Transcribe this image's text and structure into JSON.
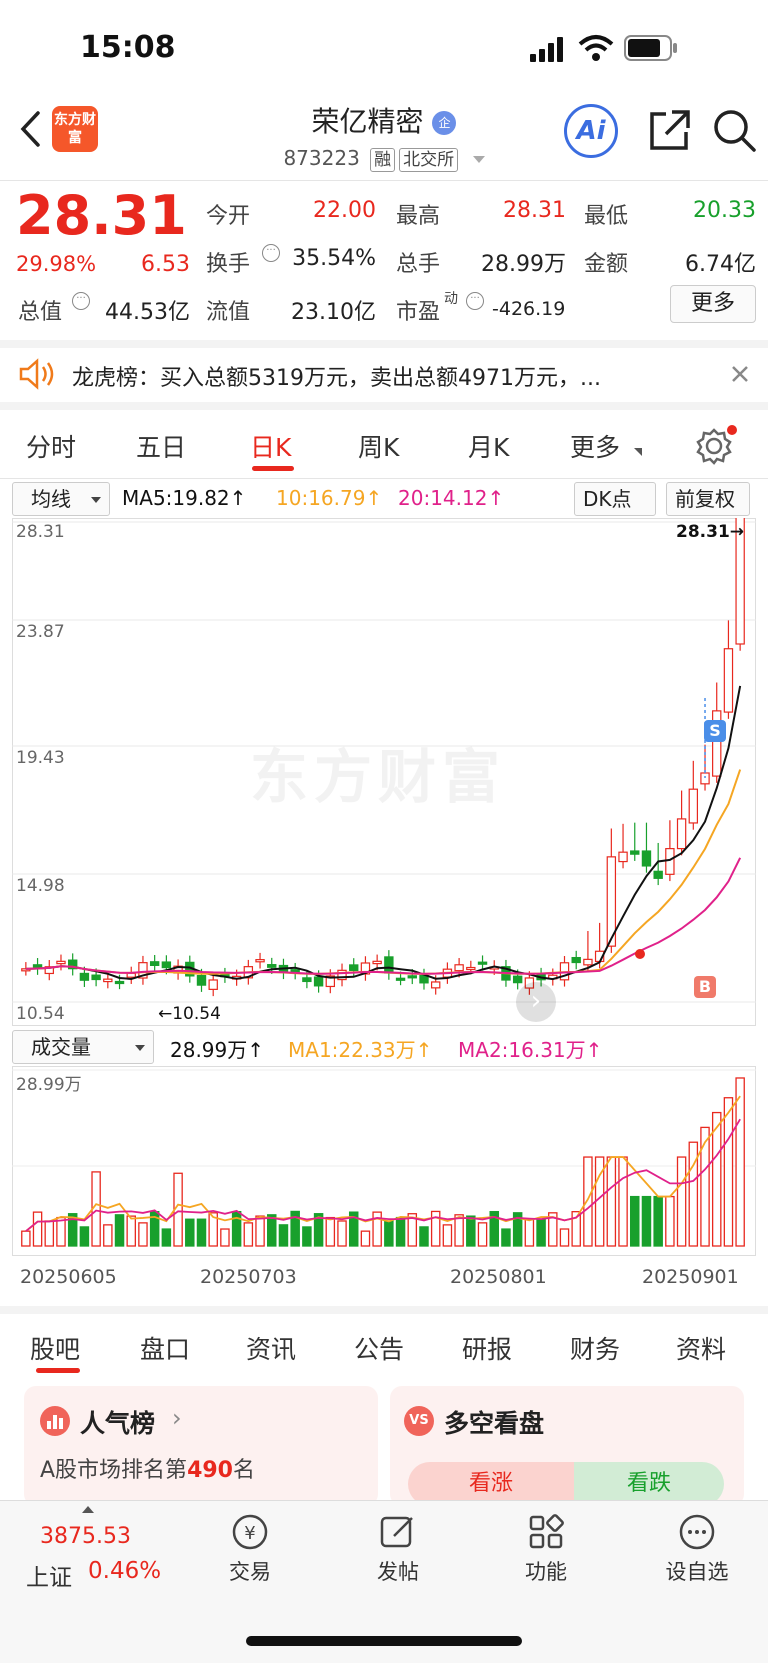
{
  "status_bar": {
    "time": "15:08"
  },
  "header": {
    "title": "荣亿精密",
    "logo_text": "东方财富",
    "code": "873223",
    "tag_margin": "融",
    "tag_exchange": "北交所"
  },
  "quote": {
    "price": "28.31",
    "change_pct": "29.98%",
    "change": "6.53",
    "open_label": "今开",
    "open": "22.00",
    "high_label": "最高",
    "high": "28.31",
    "low_label": "最低",
    "low": "20.33",
    "turnover_label": "换手",
    "turnover": "35.54%",
    "volume_label": "总手",
    "volume": "28.99万",
    "amount_label": "金额",
    "amount": "6.74亿",
    "mcap_label": "总值",
    "mcap": "44.53亿",
    "float_label": "流值",
    "float": "23.10亿",
    "pe_label": "市盈",
    "pe_sup": "动",
    "pe": "-426.19",
    "more_label": "更多"
  },
  "notice": {
    "text": "龙虎榜：买入总额5319万元，卖出总额4971万元，..."
  },
  "period_tabs": [
    "分时",
    "五日",
    "日K",
    "周K",
    "月K",
    "更多"
  ],
  "active_period": 2,
  "chart_toolbar": {
    "indicator": "均线",
    "ma5": "MA5:19.82↑",
    "ma10": "10:16.79↑",
    "ma20": "20:14.12↑",
    "dk_button": "DK点",
    "adjust_button": "前复权"
  },
  "volume_toolbar": {
    "indicator": "成交量",
    "vol": "28.99万↑",
    "ma1": "MA1:22.33万↑",
    "ma2": "MA2:16.31万↑"
  },
  "watermark": "东方财富",
  "chart_data": [
    {
      "type": "candlestick",
      "y_ticks": [
        "28.31",
        "23.87",
        "19.43",
        "14.98",
        "10.54"
      ],
      "ylim": [
        10.54,
        28.31
      ],
      "last_price_label": "28.31→",
      "min_label": "←10.54",
      "marker_s": "S",
      "marker_b": "B",
      "colors": {
        "up": "#e8281e",
        "down": "#18a02c",
        "ma5": "#111111",
        "ma10": "#f5a623",
        "ma20": "#e0218a"
      }
    },
    {
      "type": "bar",
      "y_max_label": "28.99万",
      "x_ticks": [
        "20250605",
        "20250703",
        "20250801",
        "20250901"
      ],
      "colors": {
        "up": "#e8281e",
        "down": "#18a02c",
        "ma1": "#f5a623",
        "ma2": "#e0218a"
      }
    }
  ],
  "bottom_tabs": [
    "股吧",
    "盘口",
    "资讯",
    "公告",
    "研报",
    "财务",
    "资料"
  ],
  "active_bottom_tab": 0,
  "cards": {
    "rank_title": "人气榜",
    "rank_text_prefix": "A股市场排名第",
    "rank_number": "490",
    "rank_text_suffix": "名",
    "vote_title": "多空看盘",
    "vote_up": "看涨",
    "vote_down": "看跌"
  },
  "bottom_nav": {
    "index_value": "3875.53",
    "index_name": "上证",
    "index_change": "0.46%",
    "trade": "交易",
    "post": "发帖",
    "function": "功能",
    "watchlist": "设自选"
  }
}
